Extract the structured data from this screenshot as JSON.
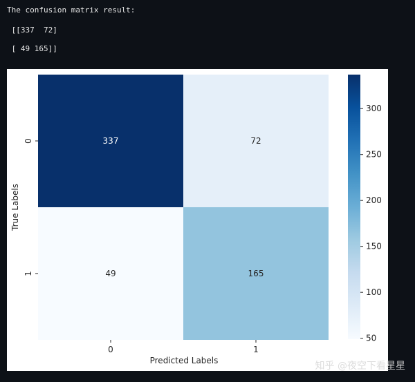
{
  "console": {
    "heading": "The confusion matrix result:",
    "row0": " [[337  72]",
    "row1": " [ 49 165]]"
  },
  "chart_data": {
    "type": "heatmap",
    "matrix": [
      [
        337,
        72
      ],
      [
        49,
        165
      ]
    ],
    "x_tick_labels": [
      "0",
      "1"
    ],
    "y_tick_labels": [
      "0",
      "1"
    ],
    "xlabel": "Predicted Labels",
    "ylabel": "True Labels",
    "colormap": "Blues",
    "colorbar": {
      "min": 49,
      "max": 337,
      "ticks": [
        50,
        100,
        150,
        200,
        250,
        300
      ],
      "tick_labels": [
        "50",
        "100",
        "150",
        "200",
        "250",
        "300"
      ]
    },
    "cell_colors": {
      "337": "#08306b",
      "72": "#e5eff9",
      "49": "#f7fbff",
      "165": "#93c4de"
    },
    "annotation_colors": {
      "dark_bg": "#ffffff",
      "light_bg": "#262626"
    }
  },
  "watermark": "知乎 @夜空下看星星"
}
